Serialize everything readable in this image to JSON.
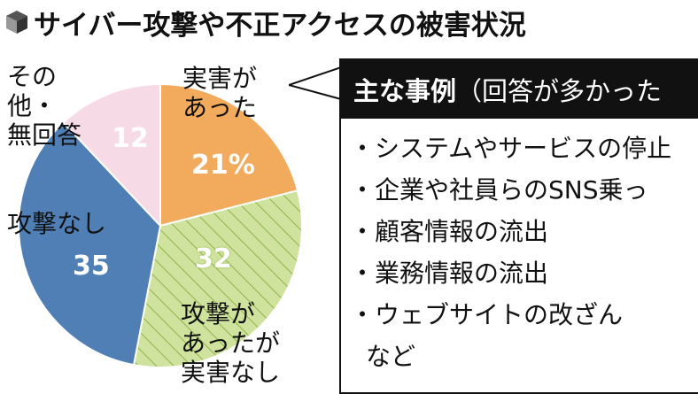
{
  "title": "サイバー攻撃や不正アクセスの被害状況",
  "chart_data": {
    "type": "pie",
    "unit": "%",
    "slices": [
      {
        "label": "実害があった",
        "value": 21,
        "value_text": "21%",
        "color": "#f2aa5d",
        "pattern": "solid"
      },
      {
        "label": "攻撃があったが実害なし",
        "value": 32,
        "value_text": "32",
        "color": "#cfe39e",
        "pattern": "hatch"
      },
      {
        "label": "攻撃なし",
        "value": 35,
        "value_text": "35",
        "color": "#4f7fb5",
        "pattern": "solid"
      },
      {
        "label": "その他・無回答",
        "value": 12,
        "value_text": "12",
        "color": "#f6dbe7",
        "pattern": "solid"
      }
    ]
  },
  "callout": {
    "heading_strong": "主な事例",
    "heading_rest": "（回答が多かった",
    "items": [
      "・システムやサービスの停止",
      "・企業や社員らのSNS乗っ",
      "・顧客情報の流出",
      "・業務情報の流出",
      "・ウェブサイトの改ざん"
    ],
    "more": "など"
  }
}
